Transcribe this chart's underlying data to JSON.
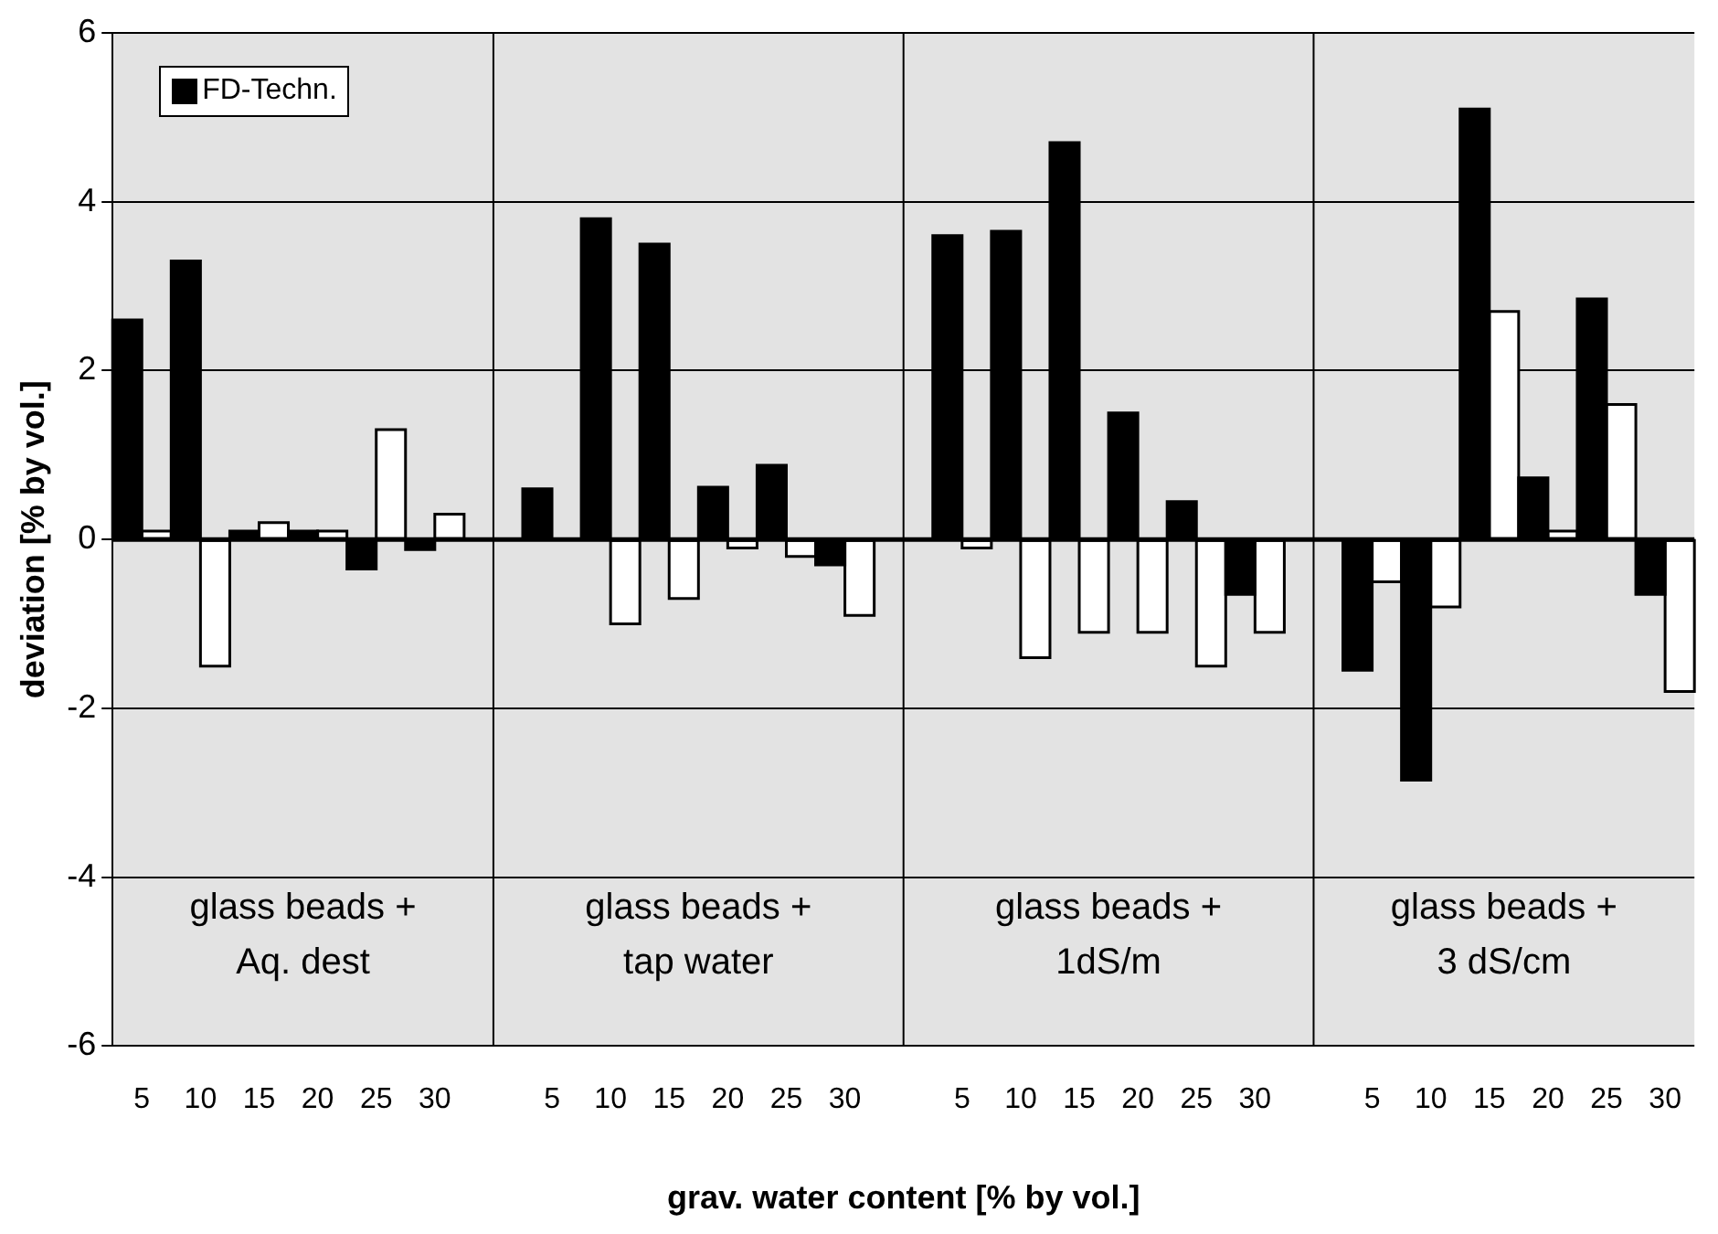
{
  "chart_data": {
    "type": "bar",
    "xlabel": "grav. water content [% by vol.]",
    "ylabel": "deviation [% by vol.]",
    "categories": [
      "5",
      "10",
      "15",
      "20",
      "25",
      "30",
      null,
      "5",
      "10",
      "15",
      "20",
      "25",
      "30",
      null,
      "5",
      "10",
      "15",
      "20",
      "25",
      "30",
      null,
      "5",
      "10",
      "15",
      "20",
      "25",
      "30"
    ],
    "series": [
      {
        "name": "FD-Techn.",
        "color": "#000000",
        "values": [
          2.6,
          3.3,
          0.1,
          0.1,
          -0.35,
          -0.12,
          null,
          0.6,
          3.8,
          3.5,
          0.62,
          0.88,
          -0.3,
          null,
          3.6,
          3.65,
          4.7,
          1.5,
          0.45,
          -0.65,
          null,
          -1.55,
          -2.85,
          5.1,
          0.73,
          2.85,
          -0.65
        ]
      },
      {
        "color": "#ffffff",
        "values": [
          0.1,
          -1.5,
          0.2,
          0.1,
          1.3,
          0.3,
          null,
          null,
          -1.0,
          -0.7,
          -0.1,
          -0.2,
          -0.9,
          null,
          -0.1,
          -1.4,
          -1.1,
          -1.1,
          -1.5,
          -1.1,
          null,
          -0.5,
          -0.8,
          2.7,
          0.1,
          1.6,
          -1.8
        ]
      }
    ],
    "ylim": [
      -6,
      6
    ],
    "yticks": [
      -6,
      -4,
      -2,
      0,
      2,
      4,
      6
    ],
    "grid": true,
    "legend": "top left",
    "annotations": [
      "glass beads + Aq. dest",
      "glass beads + tap water",
      "glass beads + 1dS/m",
      "glass beads + 3 dS/cm"
    ]
  }
}
